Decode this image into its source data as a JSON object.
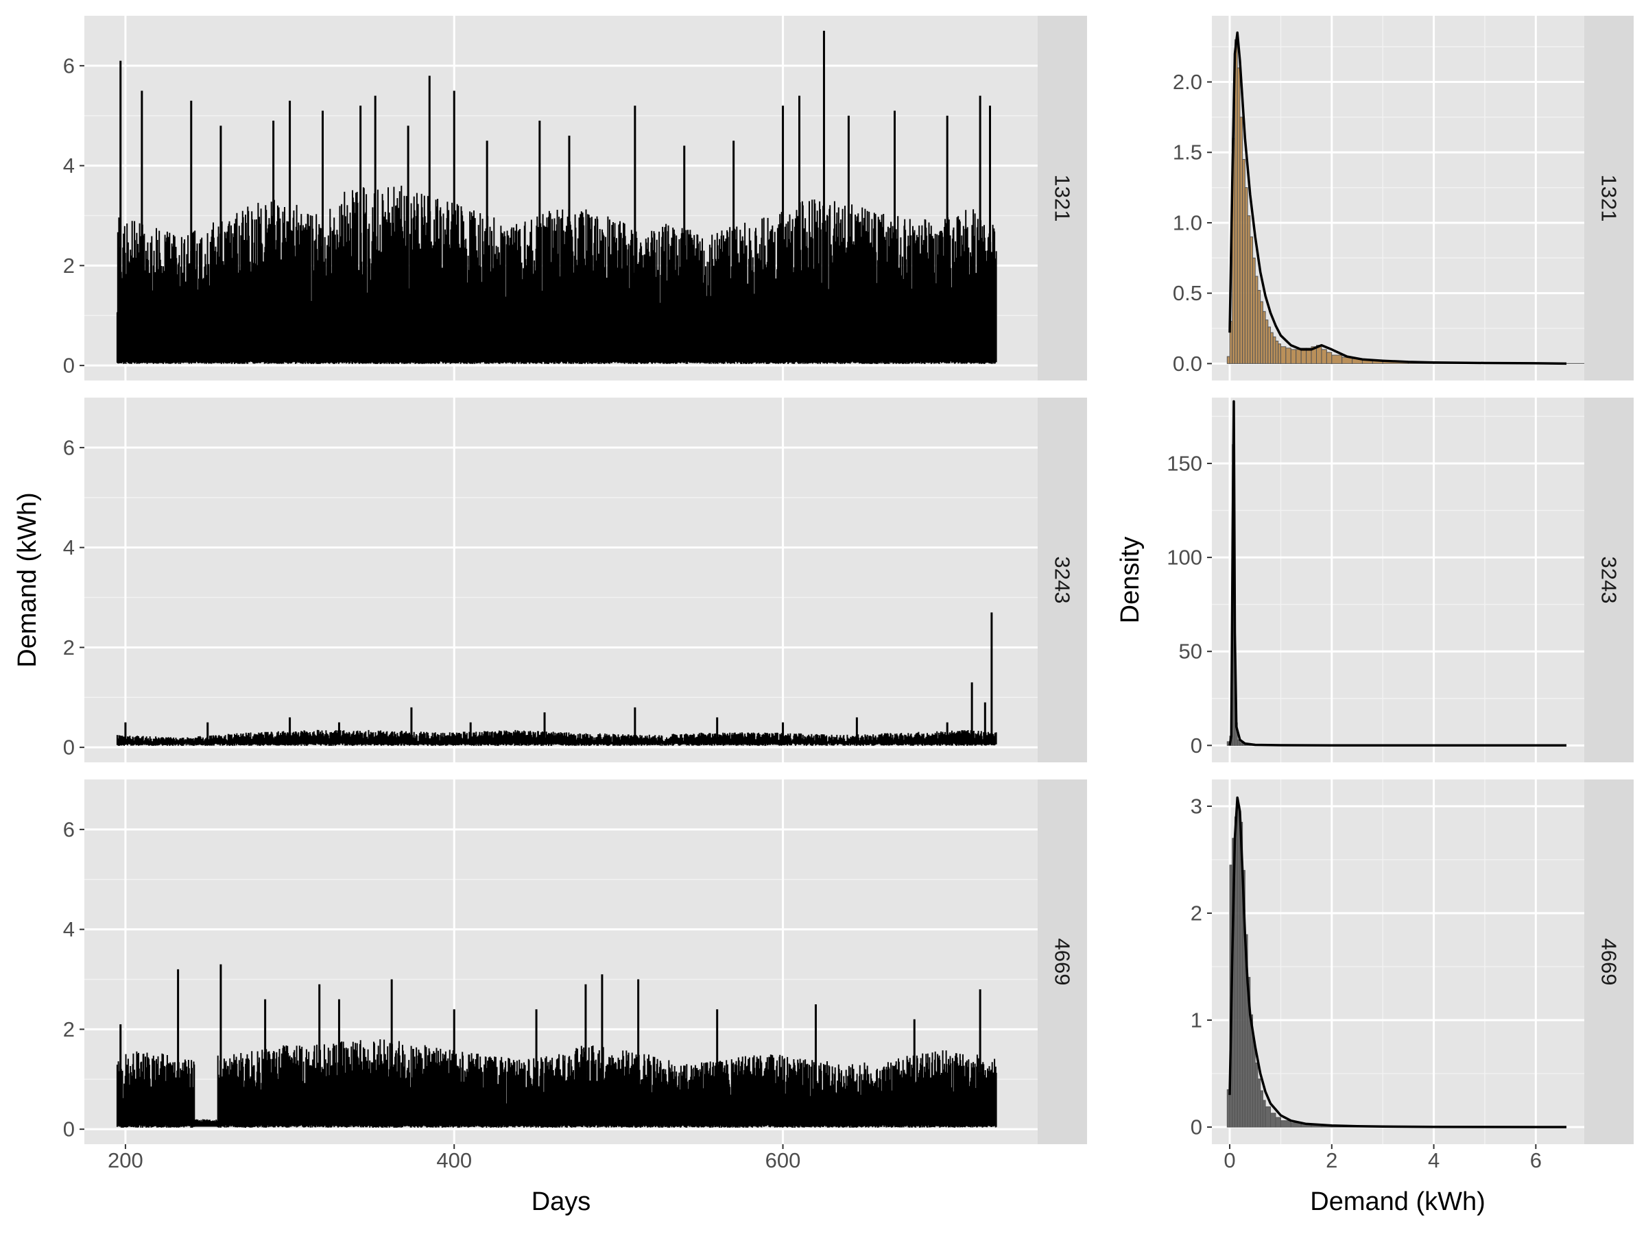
{
  "chart_data": [
    {
      "type": "line",
      "title": "",
      "xlabel": "Days",
      "ylabel": "Demand (kWh)",
      "xlim": [
        175,
        755
      ],
      "ylim": [
        -0.3,
        7.0
      ],
      "x_ticks": [
        200,
        400,
        600
      ],
      "y_ticks": [
        0,
        2,
        4,
        6
      ],
      "grid": true,
      "facets": [
        {
          "strip": "1321",
          "x_range": [
            195,
            730
          ],
          "series_color": "#000000",
          "envelope_days": [
            195,
            215,
            235,
            255,
            275,
            295,
            315,
            335,
            355,
            375,
            395,
            415,
            435,
            455,
            475,
            495,
            515,
            535,
            555,
            575,
            595,
            615,
            635,
            655,
            675,
            695,
            715,
            730
          ],
          "envelope_upper_kwh": [
            3.0,
            2.8,
            2.6,
            2.9,
            3.2,
            3.4,
            3.0,
            3.6,
            3.7,
            3.6,
            3.3,
            3.1,
            2.8,
            3.1,
            3.2,
            3.0,
            2.7,
            2.9,
            2.6,
            2.9,
            3.0,
            3.4,
            3.3,
            3.1,
            3.0,
            2.9,
            3.2,
            2.8
          ],
          "peaks": [
            {
              "day": 197,
              "kwh": 6.1
            },
            {
              "day": 210,
              "kwh": 5.5
            },
            {
              "day": 240,
              "kwh": 5.3
            },
            {
              "day": 258,
              "kwh": 4.8
            },
            {
              "day": 290,
              "kwh": 4.9
            },
            {
              "day": 300,
              "kwh": 5.3
            },
            {
              "day": 320,
              "kwh": 5.1
            },
            {
              "day": 343,
              "kwh": 5.2
            },
            {
              "day": 352,
              "kwh": 5.4
            },
            {
              "day": 372,
              "kwh": 4.8
            },
            {
              "day": 385,
              "kwh": 5.8
            },
            {
              "day": 400,
              "kwh": 5.5
            },
            {
              "day": 420,
              "kwh": 4.5
            },
            {
              "day": 452,
              "kwh": 4.9
            },
            {
              "day": 470,
              "kwh": 4.6
            },
            {
              "day": 510,
              "kwh": 5.2
            },
            {
              "day": 540,
              "kwh": 4.4
            },
            {
              "day": 570,
              "kwh": 4.5
            },
            {
              "day": 600,
              "kwh": 5.2
            },
            {
              "day": 610,
              "kwh": 5.4
            },
            {
              "day": 625,
              "kwh": 6.7
            },
            {
              "day": 640,
              "kwh": 5.0
            },
            {
              "day": 668,
              "kwh": 5.1
            },
            {
              "day": 700,
              "kwh": 5.0
            },
            {
              "day": 720,
              "kwh": 5.4
            },
            {
              "day": 726,
              "kwh": 5.2
            }
          ]
        },
        {
          "strip": "3243",
          "x_range": [
            195,
            730
          ],
          "series_color": "#000000",
          "envelope_days": [
            195,
            235,
            275,
            315,
            355,
            395,
            435,
            475,
            515,
            555,
            595,
            635,
            675,
            715,
            730
          ],
          "envelope_upper_kwh": [
            0.25,
            0.2,
            0.3,
            0.35,
            0.35,
            0.3,
            0.35,
            0.3,
            0.25,
            0.3,
            0.3,
            0.25,
            0.3,
            0.35,
            0.3
          ],
          "peaks": [
            {
              "day": 200,
              "kwh": 0.5
            },
            {
              "day": 250,
              "kwh": 0.5
            },
            {
              "day": 300,
              "kwh": 0.6
            },
            {
              "day": 330,
              "kwh": 0.5
            },
            {
              "day": 374,
              "kwh": 0.8
            },
            {
              "day": 410,
              "kwh": 0.5
            },
            {
              "day": 455,
              "kwh": 0.7
            },
            {
              "day": 510,
              "kwh": 0.8
            },
            {
              "day": 560,
              "kwh": 0.6
            },
            {
              "day": 600,
              "kwh": 0.5
            },
            {
              "day": 645,
              "kwh": 0.6
            },
            {
              "day": 700,
              "kwh": 0.5
            },
            {
              "day": 715,
              "kwh": 1.3
            },
            {
              "day": 723,
              "kwh": 0.9
            },
            {
              "day": 727,
              "kwh": 2.7
            }
          ]
        },
        {
          "strip": "4669",
          "x_range": [
            195,
            730
          ],
          "series_color": "#000000",
          "gap_days": [
            242,
            256
          ],
          "envelope_days": [
            195,
            215,
            235,
            260,
            280,
            300,
            320,
            340,
            360,
            380,
            400,
            420,
            440,
            460,
            480,
            500,
            520,
            540,
            560,
            580,
            600,
            620,
            640,
            660,
            680,
            700,
            720,
            730
          ],
          "envelope_upper_kwh": [
            1.5,
            1.6,
            1.4,
            1.5,
            1.6,
            1.7,
            1.7,
            1.8,
            1.8,
            1.7,
            1.6,
            1.5,
            1.4,
            1.5,
            1.7,
            1.6,
            1.5,
            1.3,
            1.4,
            1.5,
            1.5,
            1.4,
            1.3,
            1.4,
            1.5,
            1.6,
            1.5,
            1.4
          ],
          "peaks": [
            {
              "day": 197,
              "kwh": 2.1
            },
            {
              "day": 232,
              "kwh": 3.2
            },
            {
              "day": 258,
              "kwh": 3.3
            },
            {
              "day": 285,
              "kwh": 2.6
            },
            {
              "day": 318,
              "kwh": 2.9
            },
            {
              "day": 330,
              "kwh": 2.6
            },
            {
              "day": 362,
              "kwh": 3.0
            },
            {
              "day": 400,
              "kwh": 2.4
            },
            {
              "day": 450,
              "kwh": 2.4
            },
            {
              "day": 480,
              "kwh": 2.9
            },
            {
              "day": 490,
              "kwh": 3.1
            },
            {
              "day": 512,
              "kwh": 3.0
            },
            {
              "day": 560,
              "kwh": 2.4
            },
            {
              "day": 620,
              "kwh": 2.5
            },
            {
              "day": 680,
              "kwh": 2.2
            },
            {
              "day": 720,
              "kwh": 2.8
            }
          ]
        }
      ]
    },
    {
      "type": "bar",
      "title": "",
      "xlabel": "Demand (kWh)",
      "ylabel": "Density",
      "xlim": [
        -0.35,
        6.95
      ],
      "x_ticks": [
        0,
        2,
        4,
        6
      ],
      "grid": true,
      "facets": [
        {
          "strip": "1321",
          "ylim": [
            -0.12,
            2.47
          ],
          "y_ticks": [
            0.0,
            0.5,
            1.0,
            1.5,
            2.0
          ],
          "y_tick_labels": [
            "0.0",
            "0.5",
            "1.0",
            "1.5",
            "2.0"
          ],
          "bar_fill": "#b5864a",
          "bins": [
            -0.05,
            0.0,
            0.05,
            0.1,
            0.15,
            0.2,
            0.25,
            0.3,
            0.35,
            0.4,
            0.45,
            0.5,
            0.55,
            0.6,
            0.65,
            0.7,
            0.75,
            0.8,
            0.85,
            0.9,
            0.95,
            1.0,
            1.1,
            1.2,
            1.3,
            1.4,
            1.5,
            1.6,
            1.7,
            1.8,
            1.9,
            2.0,
            2.2,
            2.4,
            2.6,
            2.8,
            3.0,
            3.5,
            4.0,
            4.5,
            5.0,
            5.5,
            6.0,
            6.5
          ],
          "density": [
            0.05,
            0.3,
            1.6,
            2.3,
            2.1,
            1.75,
            1.45,
            1.25,
            1.05,
            0.9,
            0.75,
            0.62,
            0.52,
            0.44,
            0.37,
            0.31,
            0.26,
            0.22,
            0.19,
            0.16,
            0.14,
            0.12,
            0.11,
            0.1,
            0.1,
            0.11,
            0.11,
            0.12,
            0.13,
            0.1,
            0.08,
            0.06,
            0.045,
            0.035,
            0.025,
            0.02,
            0.015,
            0.01,
            0.008,
            0.006,
            0.004,
            0.003,
            0.002,
            0.001
          ],
          "kde_x": [
            0.0,
            0.05,
            0.1,
            0.15,
            0.2,
            0.3,
            0.4,
            0.5,
            0.6,
            0.7,
            0.8,
            0.9,
            1.0,
            1.2,
            1.4,
            1.6,
            1.8,
            2.0,
            2.3,
            2.6,
            3.0,
            3.5,
            4.0,
            5.0,
            6.0,
            6.6
          ],
          "kde_y": [
            0.22,
            1.3,
            2.2,
            2.35,
            2.15,
            1.6,
            1.2,
            0.9,
            0.65,
            0.48,
            0.36,
            0.27,
            0.2,
            0.13,
            0.1,
            0.1,
            0.13,
            0.1,
            0.05,
            0.03,
            0.02,
            0.012,
            0.008,
            0.004,
            0.002,
            0.0
          ]
        },
        {
          "strip": "3243",
          "ylim": [
            -9,
            185
          ],
          "y_ticks": [
            0,
            50,
            100,
            150
          ],
          "y_tick_labels": [
            "0",
            "50",
            "100",
            "150"
          ],
          "bar_fill": "#595959",
          "bins": [
            -0.05,
            0.0,
            0.05,
            0.1,
            0.15,
            0.2,
            0.25,
            0.3,
            0.4,
            0.6,
            0.8,
            1.0,
            1.5,
            2.0,
            2.5,
            3.0,
            4.0,
            5.0,
            6.0
          ],
          "density": [
            2,
            5,
            160,
            12,
            3,
            1.5,
            1,
            0.6,
            0.3,
            0.15,
            0.08,
            0.04,
            0.02,
            0.01,
            0.01,
            0.005,
            0.002,
            0.001,
            0.0
          ],
          "kde_x": [
            0.0,
            0.03,
            0.06,
            0.08,
            0.1,
            0.13,
            0.2,
            0.3,
            0.5,
            1.0,
            2.0,
            3.0,
            4.0,
            5.0,
            6.0,
            6.6
          ],
          "kde_y": [
            0,
            5,
            120,
            183,
            60,
            10,
            3,
            1,
            0.3,
            0.1,
            0.02,
            0.01,
            0.005,
            0.002,
            0.001,
            0.0
          ]
        },
        {
          "strip": "4669",
          "ylim": [
            -0.16,
            3.25
          ],
          "y_ticks": [
            0,
            1,
            2,
            3
          ],
          "y_tick_labels": [
            "0",
            "1",
            "2",
            "3"
          ],
          "bar_fill": "#595959",
          "bins": [
            -0.05,
            0.0,
            0.05,
            0.1,
            0.15,
            0.2,
            0.25,
            0.3,
            0.35,
            0.4,
            0.45,
            0.5,
            0.55,
            0.6,
            0.65,
            0.7,
            0.8,
            0.9,
            1.0,
            1.2,
            1.4,
            1.6,
            1.8,
            2.0,
            2.5,
            3.0,
            4.0,
            5.0,
            6.0
          ],
          "density": [
            0.35,
            2.45,
            2.7,
            2.9,
            3.0,
            2.85,
            2.4,
            1.8,
            1.4,
            1.05,
            0.8,
            0.6,
            0.45,
            0.34,
            0.25,
            0.19,
            0.13,
            0.09,
            0.06,
            0.04,
            0.03,
            0.02,
            0.015,
            0.01,
            0.006,
            0.004,
            0.002,
            0.001,
            0.0
          ],
          "kde_x": [
            0.0,
            0.05,
            0.1,
            0.15,
            0.2,
            0.25,
            0.3,
            0.35,
            0.4,
            0.5,
            0.6,
            0.7,
            0.8,
            1.0,
            1.2,
            1.5,
            2.0,
            2.5,
            3.0,
            4.0,
            5.0,
            6.0,
            6.6
          ],
          "kde_y": [
            0.3,
            1.6,
            2.7,
            3.08,
            2.95,
            2.4,
            1.8,
            1.35,
            1.05,
            0.75,
            0.5,
            0.33,
            0.22,
            0.11,
            0.06,
            0.03,
            0.015,
            0.008,
            0.005,
            0.002,
            0.001,
            0.0,
            0.0
          ]
        }
      ]
    }
  ]
}
